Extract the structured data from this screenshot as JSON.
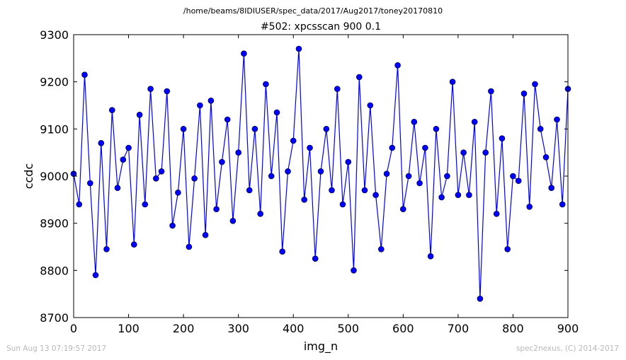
{
  "header": {
    "file_path": "/home/beams/8IDIUSER/spec_data/2017/Aug2017/toney20170810"
  },
  "footer": {
    "timestamp": "Sun Aug 13 07:19:57 2017",
    "credit": "spec2nexus, (C) 2014-2017"
  },
  "chart_data": {
    "type": "line",
    "title": "#502: xpcsscan 900 0.1",
    "xlabel": "img_n",
    "ylabel": "ccdc",
    "xlim": [
      0,
      900
    ],
    "ylim": [
      8700,
      9300
    ],
    "xticks": [
      0,
      100,
      200,
      300,
      400,
      500,
      600,
      700,
      800,
      900
    ],
    "yticks": [
      8700,
      8800,
      8900,
      9000,
      9100,
      9200,
      9300
    ],
    "grid": false,
    "line_color": "#0000ff",
    "marker_color": "#0000ff",
    "marker": "circle",
    "series": [
      {
        "x": [
          0,
          10,
          20,
          30,
          40,
          50,
          60,
          70,
          80,
          90,
          100,
          110,
          120,
          130,
          140,
          150,
          160,
          170,
          180,
          190,
          200,
          210,
          220,
          230,
          240,
          250,
          260,
          270,
          280,
          290,
          300,
          310,
          320,
          330,
          340,
          350,
          360,
          370,
          380,
          390,
          400,
          410,
          420,
          430,
          440,
          450,
          460,
          470,
          480,
          490,
          500,
          510,
          520,
          530,
          540,
          550,
          560,
          570,
          580,
          590,
          600,
          610,
          620,
          630,
          640,
          650,
          660,
          670,
          680,
          690,
          700,
          710,
          720,
          730,
          740,
          750,
          760,
          770,
          780,
          790,
          800,
          810,
          820,
          830,
          840,
          850,
          860,
          870,
          880,
          890,
          900
        ],
        "y": [
          9005,
          8940,
          9215,
          8985,
          8790,
          9070,
          8845,
          9140,
          8975,
          9035,
          9060,
          8855,
          9130,
          8940,
          9185,
          8995,
          9010,
          9180,
          8895,
          8965,
          9100,
          8850,
          8995,
          9150,
          8875,
          9160,
          8930,
          9030,
          9120,
          8905,
          9050,
          9260,
          8970,
          9100,
          8920,
          9195,
          9000,
          9135,
          8840,
          9010,
          9075,
          9270,
          8950,
          9060,
          8825,
          9010,
          9100,
          8970,
          9185,
          8940,
          9030,
          8800,
          9210,
          8970,
          9150,
          8960,
          8845,
          9005,
          9060,
          9235,
          8930,
          9000,
          9115,
          8985,
          9060,
          8830,
          9100,
          8955,
          9000,
          9200,
          8960,
          9050,
          8960,
          9115,
          8740,
          9050,
          9180,
          8920,
          9080,
          8845,
          9000,
          8990,
          9175,
          8935,
          9195,
          9100,
          9040,
          8975,
          9120,
          8940,
          9185
        ]
      }
    ]
  }
}
